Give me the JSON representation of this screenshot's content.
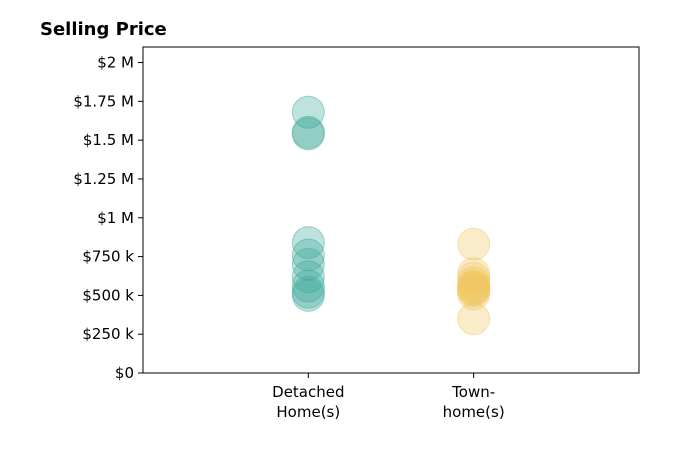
{
  "chart_data": {
    "type": "scatter",
    "title": "Selling Price",
    "xlabel": "",
    "ylabel": "",
    "categories": [
      {
        "label_lines": [
          "Detached",
          "Home(s)"
        ]
      },
      {
        "label_lines": [
          "Town-",
          "home(s)"
        ]
      }
    ],
    "ylim": [
      0,
      2100000
    ],
    "xlim": [
      -1,
      2
    ],
    "y_ticks": [
      {
        "value": 0,
        "label": "$0"
      },
      {
        "value": 250000,
        "label": "$250 k"
      },
      {
        "value": 500000,
        "label": "$500 k"
      },
      {
        "value": 750000,
        "label": "$750 k"
      },
      {
        "value": 1000000,
        "label": "$1 M"
      },
      {
        "value": 1250000,
        "label": "$1.25 M"
      },
      {
        "value": 1500000,
        "label": "$1.5 M"
      },
      {
        "value": 1750000,
        "label": "$1.75 M"
      },
      {
        "value": 2000000,
        "label": "$2 M"
      }
    ],
    "grid": false,
    "legend": "none",
    "series": [
      {
        "category_index": 0,
        "color": "#3aa897",
        "values": [
          1680000,
          1550000,
          1540000,
          840000,
          760000,
          700000,
          620000,
          560000,
          520000,
          500000
        ]
      },
      {
        "category_index": 1,
        "color": "#efc65e",
        "values": [
          830000,
          640000,
          610000,
          580000,
          560000,
          550000,
          540000,
          530000,
          510000,
          350000
        ]
      }
    ]
  }
}
